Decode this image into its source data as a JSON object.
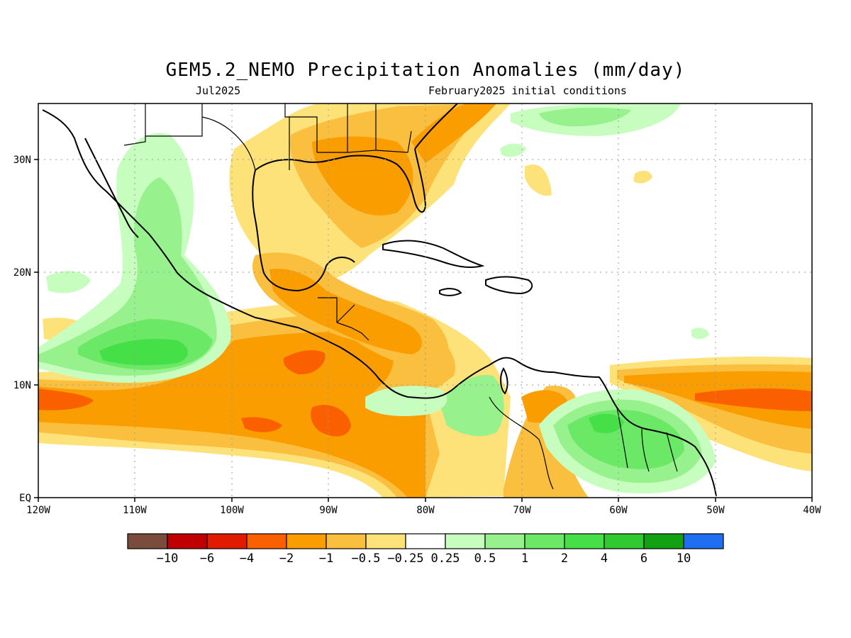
{
  "title": "GEM5.2_NEMO Precipitation Anomalies (mm/day)",
  "subtitle_left": "Jul2025",
  "subtitle_right": "February2025 initial conditions",
  "map": {
    "lon_range": [
      -120,
      -40
    ],
    "lat_range": [
      0,
      35
    ],
    "x_ticks": [
      "120W",
      "110W",
      "100W",
      "90W",
      "80W",
      "70W",
      "60W",
      "50W",
      "40W"
    ],
    "y_ticks": [
      "EQ",
      "10N",
      "20N",
      "30N"
    ],
    "grid": true
  },
  "legend": {
    "thresholds": [
      "-10",
      "-6",
      "-4",
      "-2",
      "-1",
      "-0.5",
      "-0.25",
      "0.25",
      "0.5",
      "1",
      "2",
      "4",
      "6",
      "10"
    ],
    "colors": [
      "#7b4b3e",
      "#c00000",
      "#e01b00",
      "#fa6000",
      "#fa9d00",
      "#fbbf3f",
      "#fde27a",
      "#ffffff",
      "#c8fdc0",
      "#97f18d",
      "#6ae866",
      "#45e048",
      "#30c930",
      "#12a112",
      "#1f6ff0"
    ]
  },
  "colors": {
    "dry_strong": "#fa6000",
    "dry_moderate": "#fa9d00",
    "dry_light": "#fbbf3f",
    "dry_weak": "#fde27a",
    "wet_weak": "#c8fdc0",
    "wet_light": "#97f18d",
    "wet_moderate": "#6ae866",
    "wet_strong": "#45e048"
  }
}
